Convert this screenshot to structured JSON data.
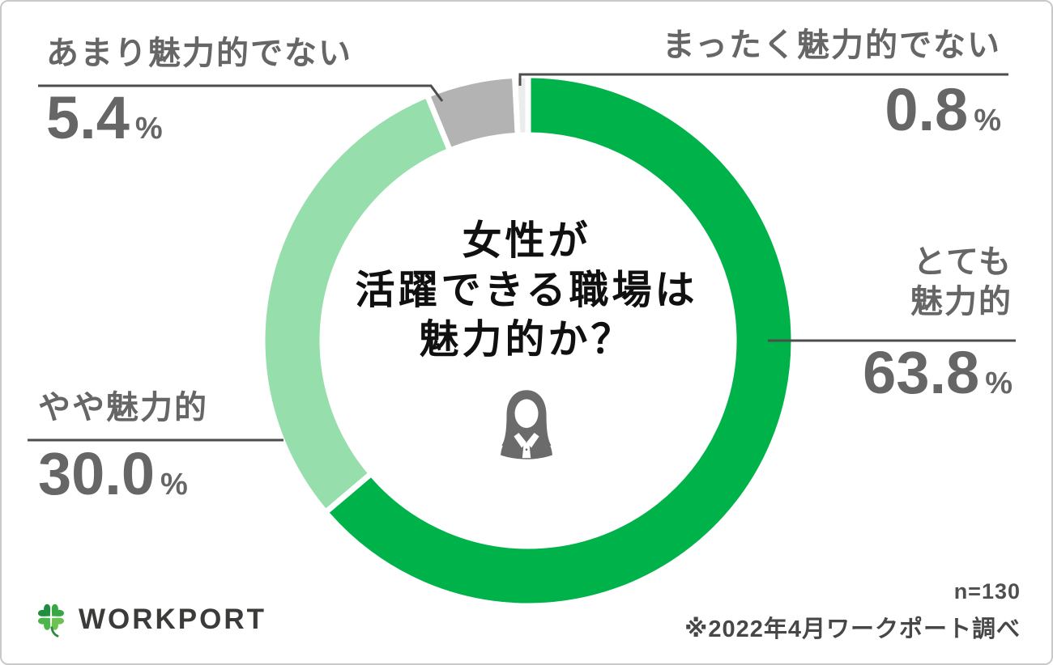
{
  "chart_data": {
    "type": "pie",
    "subtype": "donut",
    "title": "女性が活躍できる職場は魅力的か？",
    "title_lines": [
      "女性が",
      "活躍できる職場は",
      "魅力的か？"
    ],
    "unit": "%",
    "start_angle": "top",
    "direction": "clockwise",
    "inner_radius_ratio": 0.775,
    "segments": [
      {
        "label": "とても魅力的",
        "label_lines": [
          "とても",
          "魅力的"
        ],
        "value": 63.8,
        "display_value": "63.8",
        "color": "#00b24a"
      },
      {
        "label": "やや魅力的",
        "value": 30.0,
        "display_value": "30.0",
        "color": "#96dfad"
      },
      {
        "label": "あまり魅力的でない",
        "value": 5.4,
        "display_value": "5.4",
        "color": "#b3b3b3"
      },
      {
        "label": "まったく魅力的でない",
        "value": 0.8,
        "display_value": "0.8",
        "color": "#ececec"
      }
    ],
    "sample_size": "n=130",
    "source_note": "※2022年4月ワークポート調べ"
  },
  "footer": {
    "brand": "WORKPORT",
    "brand_color": "#2e9b44"
  },
  "icons": {
    "center_icon": "businesswoman-silhouette",
    "brand_icon": "four-leaf-clover"
  }
}
